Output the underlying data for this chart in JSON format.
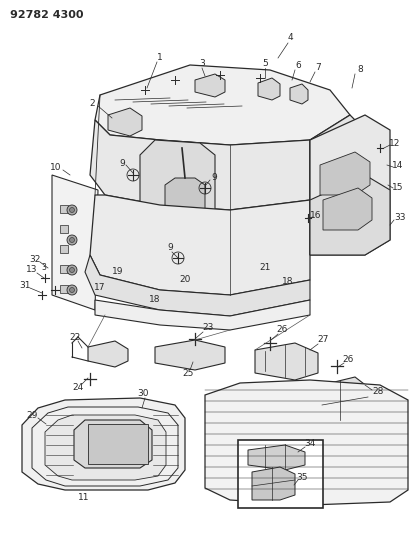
{
  "title": "92782 4300",
  "bg_color": "#ffffff",
  "line_color": "#2a2a2a",
  "fig_width": 4.12,
  "fig_height": 5.33,
  "dpi": 100
}
